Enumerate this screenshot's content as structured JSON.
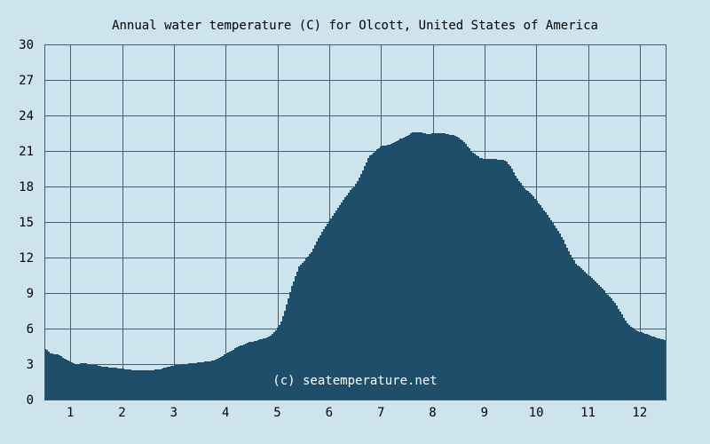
{
  "chart_data": {
    "type": "area",
    "title": "Annual water temperature (C) for Olcott, United States of America",
    "xlabel": "",
    "ylabel": "",
    "xlim": [
      0.5,
      12.5
    ],
    "ylim": [
      0,
      30
    ],
    "x_ticks": [
      1,
      2,
      3,
      4,
      5,
      6,
      7,
      8,
      9,
      10,
      11,
      12
    ],
    "y_ticks": [
      0,
      3,
      6,
      9,
      12,
      15,
      18,
      21,
      24,
      27,
      30
    ],
    "grid": true,
    "legend": "none",
    "annotation": "(c) seatemperature.net",
    "colors": {
      "background": "#cde3ee",
      "plot_background": "#cde3ee",
      "area_fill": "#1e4e69",
      "grid": "#3f6170",
      "text": "#000000",
      "watermark": "#ffffff"
    },
    "series": [
      {
        "x": [
          0.5,
          0.6,
          0.75,
          0.9,
          1.0,
          1.1,
          1.25,
          1.4,
          1.5,
          1.6,
          1.8,
          2.0,
          2.2,
          2.4,
          2.5,
          2.6,
          2.75,
          2.9,
          3.0,
          3.2,
          3.4,
          3.6,
          3.75,
          3.9,
          4.0,
          4.2,
          4.4,
          4.5,
          4.6,
          4.75,
          4.85,
          4.95,
          5.05,
          5.15,
          5.25,
          5.4,
          5.5,
          5.65,
          5.8,
          6.0,
          6.2,
          6.4,
          6.5,
          6.6,
          6.75,
          6.9,
          7.0,
          7.2,
          7.35,
          7.5,
          7.6,
          7.75,
          7.9,
          8.0,
          8.2,
          8.4,
          8.5,
          8.6,
          8.75,
          8.9,
          9.0,
          9.2,
          9.4,
          9.5,
          9.6,
          9.75,
          9.9,
          10.0,
          10.2,
          10.4,
          10.5,
          10.6,
          10.75,
          10.9,
          11.0,
          11.2,
          11.4,
          11.5,
          11.6,
          11.75,
          11.9,
          12.0,
          12.2,
          12.4,
          12.5
        ],
        "values": [
          4.3,
          3.9,
          3.8,
          3.4,
          3.2,
          3.0,
          3.1,
          2.9,
          2.9,
          2.8,
          2.7,
          2.6,
          2.5,
          2.5,
          2.5,
          2.5,
          2.6,
          2.8,
          2.9,
          3.0,
          3.1,
          3.2,
          3.3,
          3.6,
          3.9,
          4.4,
          4.8,
          4.9,
          5.0,
          5.2,
          5.4,
          5.8,
          6.5,
          7.8,
          9.4,
          11.2,
          11.7,
          12.5,
          13.8,
          15.2,
          16.5,
          17.7,
          18.2,
          19.0,
          20.5,
          21.1,
          21.4,
          21.6,
          22.0,
          22.3,
          22.6,
          22.6,
          22.4,
          22.5,
          22.5,
          22.3,
          22.1,
          21.7,
          20.9,
          20.4,
          20.3,
          20.3,
          20.2,
          19.6,
          18.8,
          17.9,
          17.3,
          16.8,
          15.6,
          14.3,
          13.6,
          12.6,
          11.5,
          10.9,
          10.5,
          9.7,
          8.7,
          8.2,
          7.5,
          6.4,
          5.9,
          5.7,
          5.4,
          5.1,
          5.0
        ]
      }
    ]
  }
}
